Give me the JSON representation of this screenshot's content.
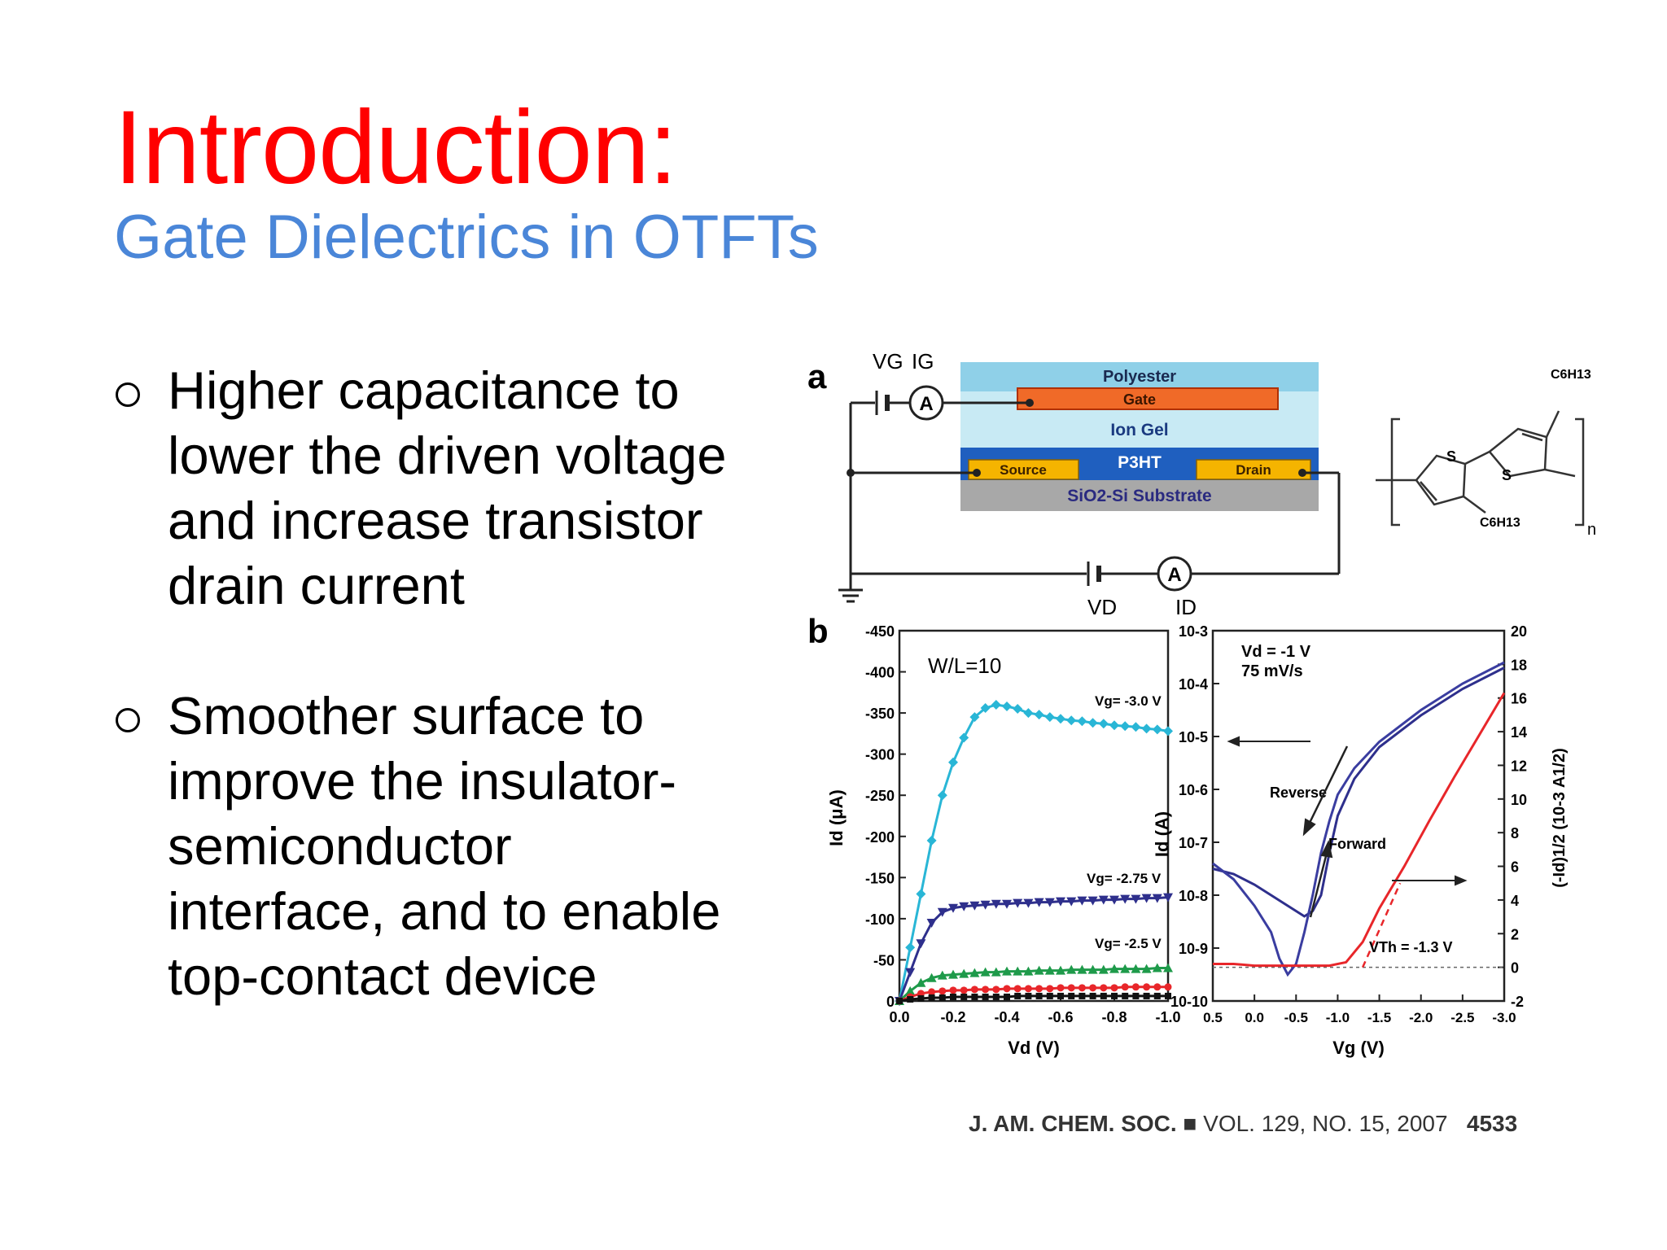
{
  "slide": {
    "title": "Introduction:",
    "subtitle": "Gate Dielectrics in OTFTs",
    "bullets": [
      [
        "Higher capacitance to",
        "lower the driven voltage",
        "and increase transistor",
        "drain current"
      ],
      [
        "Smoother surface to",
        "improve the insulator-",
        "semiconductor",
        "interface, and to enable",
        "top-contact device"
      ]
    ]
  },
  "figure": {
    "panel_a": {
      "label": "a",
      "layers": {
        "polyester": "Polyester",
        "gate": "Gate",
        "ion_gel": "Ion Gel",
        "p3ht": "P3HT",
        "source": "Source",
        "drain": "Drain",
        "substrate": "SiO2-Si Substrate"
      },
      "labels": {
        "vg": "VG",
        "ig": "IG",
        "vd": "VD",
        "id": "ID",
        "ammeter": "A"
      },
      "molecule": {
        "s": "S",
        "r1": "C6H13",
        "n": "n"
      },
      "colors": {
        "polyester": "#8fd0e8",
        "gate": "#f06a28",
        "ion_gel": "#c8eaf4",
        "p3ht": "#1f5fbf",
        "electrode": "#f5b400",
        "substrate": "#a8a8a8"
      }
    },
    "panel_b": {
      "label": "b"
    },
    "citation": {
      "journal": "J. AM. CHEM. SOC.",
      "volume": "VOL. 129, NO. 15, 2007",
      "page": "4533"
    }
  },
  "chart_data": [
    {
      "type": "line",
      "annotation": "W/L=10",
      "xlabel": "Vd (V)",
      "ylabel": "Id (μA)",
      "xlim": [
        0.0,
        -1.0
      ],
      "ylim": [
        0,
        -450
      ],
      "xticks": [
        "0.0",
        "-0.2",
        "-0.4",
        "-0.6",
        "-0.8",
        "-1.0"
      ],
      "yticks": [
        "-450",
        "-400",
        "-350",
        "-300",
        "-250",
        "-200",
        "-150",
        "-100",
        "-50",
        "0"
      ],
      "series": [
        {
          "name": "Vg= -3.0 V",
          "color": "#29b6d6",
          "marker": "diamond",
          "x": [
            0,
            -0.04,
            -0.08,
            -0.12,
            -0.16,
            -0.2,
            -0.24,
            -0.28,
            -0.32,
            -0.36,
            -0.4,
            -0.44,
            -0.48,
            -0.52,
            -0.56,
            -0.6,
            -0.64,
            -0.68,
            -0.72,
            -0.76,
            -0.8,
            -0.84,
            -0.88,
            -0.92,
            -0.96,
            -1.0
          ],
          "y": [
            0,
            -65,
            -130,
            -195,
            -250,
            -290,
            -320,
            -345,
            -356,
            -360,
            -358,
            -355,
            -350,
            -348,
            -345,
            -343,
            -341,
            -340,
            -338,
            -337,
            -335,
            -334,
            -333,
            -331,
            -330,
            -328
          ]
        },
        {
          "name": "Vg= -2.75 V",
          "color": "#2e2f8c",
          "marker": "triangle-down",
          "x": [
            0,
            -0.04,
            -0.08,
            -0.12,
            -0.16,
            -0.2,
            -0.24,
            -0.28,
            -0.32,
            -0.36,
            -0.4,
            -0.44,
            -0.48,
            -0.52,
            -0.56,
            -0.6,
            -0.64,
            -0.68,
            -0.72,
            -0.76,
            -0.8,
            -0.84,
            -0.88,
            -0.92,
            -0.96,
            -1.0
          ],
          "y": [
            0,
            -35,
            -70,
            -95,
            -108,
            -113,
            -115,
            -116,
            -117,
            -118,
            -118,
            -119,
            -119,
            -120,
            -120,
            -121,
            -121,
            -122,
            -122,
            -123,
            -123,
            -124,
            -124,
            -125,
            -125,
            -126
          ]
        },
        {
          "name": "Vg= -2.5 V",
          "color": "#1e9a4a",
          "marker": "triangle-up",
          "x": [
            0,
            -0.04,
            -0.08,
            -0.12,
            -0.16,
            -0.2,
            -0.24,
            -0.28,
            -0.32,
            -0.36,
            -0.4,
            -0.44,
            -0.48,
            -0.52,
            -0.56,
            -0.6,
            -0.64,
            -0.68,
            -0.72,
            -0.76,
            -0.8,
            -0.84,
            -0.88,
            -0.92,
            -0.96,
            -1.0
          ],
          "y": [
            0,
            -12,
            -22,
            -28,
            -31,
            -32,
            -33,
            -34,
            -35,
            -35,
            -36,
            -36,
            -36,
            -37,
            -37,
            -37,
            -38,
            -38,
            -38,
            -38,
            -39,
            -39,
            -39,
            -39,
            -40,
            -40
          ]
        },
        {
          "name": "",
          "color": "#e8262a",
          "marker": "circle",
          "x": [
            0,
            -0.04,
            -0.08,
            -0.12,
            -0.16,
            -0.2,
            -0.24,
            -0.28,
            -0.32,
            -0.36,
            -0.4,
            -0.44,
            -0.48,
            -0.52,
            -0.56,
            -0.6,
            -0.64,
            -0.68,
            -0.72,
            -0.76,
            -0.8,
            -0.84,
            -0.88,
            -0.92,
            -0.96,
            -1.0
          ],
          "y": [
            0,
            -5,
            -9,
            -11,
            -12,
            -13,
            -13,
            -14,
            -14,
            -14,
            -15,
            -15,
            -15,
            -15,
            -15,
            -16,
            -16,
            -16,
            -16,
            -16,
            -16,
            -17,
            -17,
            -17,
            -17,
            -17
          ]
        },
        {
          "name": "",
          "color": "#111111",
          "marker": "square",
          "x": [
            0,
            -0.04,
            -0.08,
            -0.12,
            -0.16,
            -0.2,
            -0.24,
            -0.28,
            -0.32,
            -0.36,
            -0.4,
            -0.44,
            -0.48,
            -0.52,
            -0.56,
            -0.6,
            -0.64,
            -0.68,
            -0.72,
            -0.76,
            -0.8,
            -0.84,
            -0.88,
            -0.92,
            -0.96,
            -1.0
          ],
          "y": [
            0,
            -2,
            -3,
            -4,
            -4,
            -5,
            -5,
            -5,
            -5,
            -5,
            -5,
            -6,
            -6,
            -6,
            -6,
            -6,
            -6,
            -6,
            -6,
            -6,
            -6,
            -6,
            -6,
            -6,
            -6,
            -6
          ]
        }
      ]
    },
    {
      "type": "line",
      "annotation": [
        "Vd = -1 V",
        "75 mV/s"
      ],
      "xlabel": "Vg (V)",
      "ylabel": "Id (A)",
      "y2label": "(-Id)1/2 (10-3 A1/2)",
      "xlim": [
        0.5,
        -3.0
      ],
      "ylim_log_exponent": [
        -10,
        -3
      ],
      "y2lim": [
        -2,
        20
      ],
      "xticks": [
        "0.5",
        "0.0",
        "-0.5",
        "-1.0",
        "-1.5",
        "-2.0",
        "-2.5",
        "-3.0"
      ],
      "yticks": [
        "10-3",
        "10-4",
        "10-5",
        "10-6",
        "10-7",
        "10-8",
        "10-9",
        "10-10"
      ],
      "y2ticks": [
        "20",
        "18",
        "16",
        "14",
        "12",
        "10",
        "8",
        "6",
        "4",
        "2",
        "0",
        "-2"
      ],
      "labels": {
        "reverse": "Reverse",
        "forward": "Forward",
        "vth": "VTh = -1.3 V"
      },
      "series": [
        {
          "name": "Reverse",
          "color": "#2e2f8c",
          "axis": "left",
          "x": [
            0.5,
            0.25,
            0.0,
            -0.2,
            -0.4,
            -0.5,
            -0.6,
            -0.7,
            -0.8,
            -0.9,
            -1.0,
            -1.2,
            -1.5,
            -2.0,
            -2.5,
            -3.0
          ],
          "y_log": [
            -7.5,
            -7.6,
            -7.8,
            -8.0,
            -8.2,
            -8.3,
            -8.4,
            -8.3,
            -8.0,
            -7.2,
            -6.5,
            -5.8,
            -5.2,
            -4.6,
            -4.1,
            -3.7
          ]
        },
        {
          "name": "Forward",
          "color": "#3a3da0",
          "axis": "left",
          "x": [
            0.5,
            0.25,
            0.0,
            -0.2,
            -0.3,
            -0.4,
            -0.5,
            -0.6,
            -0.7,
            -0.8,
            -0.9,
            -1.0,
            -1.2,
            -1.5,
            -2.0,
            -2.5,
            -3.0
          ],
          "y_log": [
            -7.4,
            -7.7,
            -8.2,
            -8.7,
            -9.2,
            -9.5,
            -9.3,
            -8.7,
            -8.0,
            -7.2,
            -6.6,
            -6.1,
            -5.6,
            -5.1,
            -4.5,
            -4.0,
            -3.6
          ]
        },
        {
          "name": "(-Id)1/2",
          "color": "#e8262a",
          "axis": "right",
          "x": [
            0.5,
            0.25,
            0.0,
            -0.3,
            -0.6,
            -0.9,
            -1.1,
            -1.3,
            -1.5,
            -1.8,
            -2.1,
            -2.4,
            -2.7,
            -3.0
          ],
          "y": [
            0.2,
            0.2,
            0.1,
            0.1,
            0.1,
            0.1,
            0.3,
            1.5,
            3.5,
            6.0,
            8.7,
            11.3,
            13.8,
            16.3
          ]
        }
      ]
    }
  ]
}
